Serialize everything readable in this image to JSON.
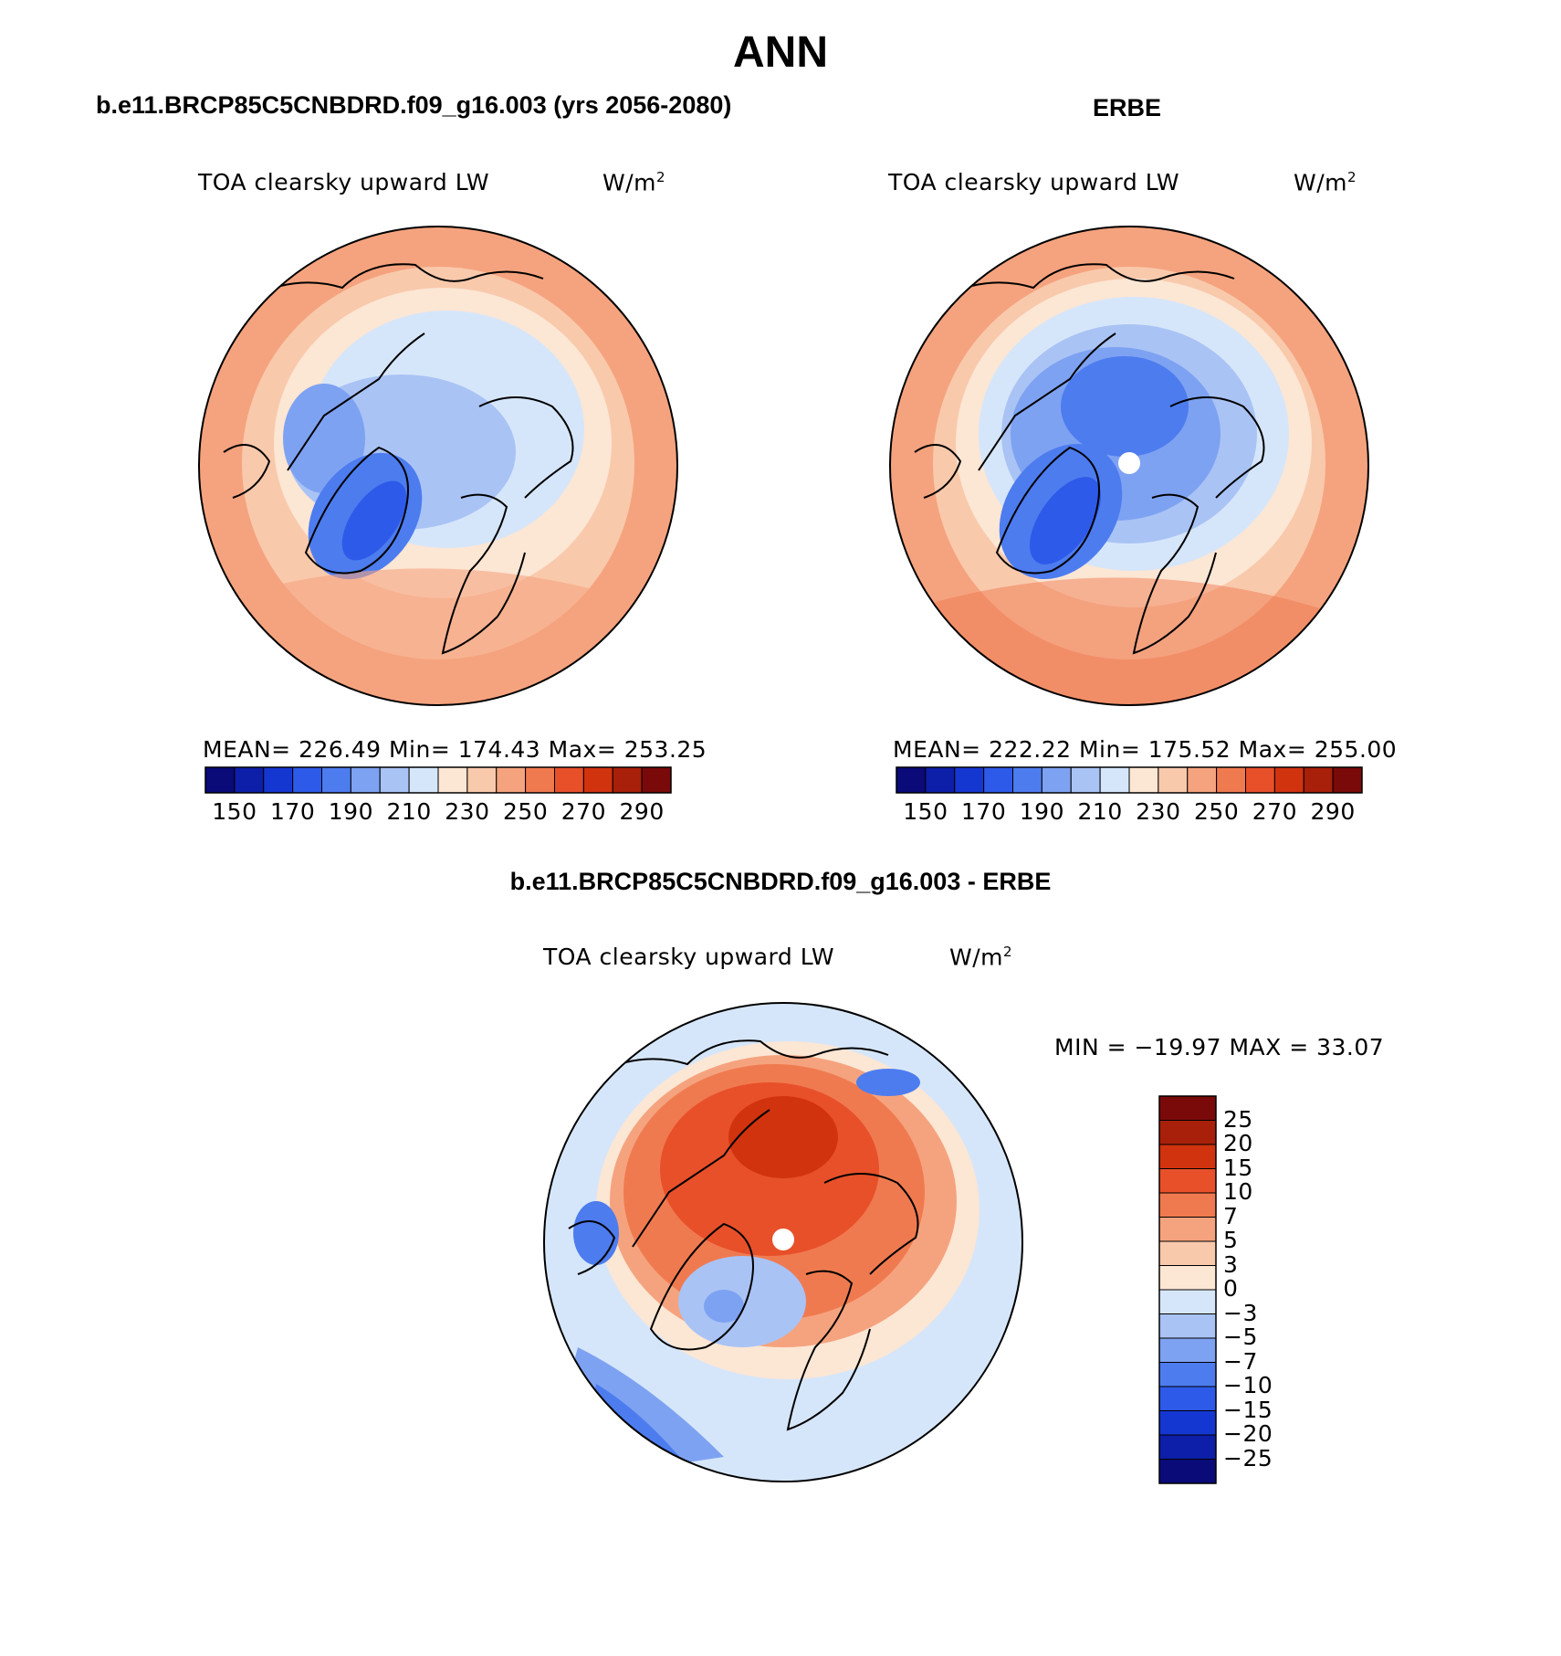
{
  "title": "ANN",
  "panels": [
    {
      "id": "model",
      "title": "b.e11.BRCP85C5CNBDRD.f09_g16.003 (yrs 2056-2080)",
      "variable": "TOA clearsky upward LW",
      "units_base": "W/m",
      "units_exp": "2",
      "stats": "MEAN= 226.49   Min= 174.43   Max= 253.25",
      "colorbar_labels": [
        "150",
        "170",
        "190",
        "210",
        "230",
        "250",
        "270",
        "290"
      ],
      "colorbar_colors": [
        "#0a0a78",
        "#0d1ea8",
        "#1537d1",
        "#2d5ae8",
        "#4d7cef",
        "#7ea2f2",
        "#a9c3f5",
        "#d6e6fa",
        "#fce6d4",
        "#f9c9ac",
        "#f5a37e",
        "#f07a50",
        "#e8502a",
        "#d1330f",
        "#a8200a",
        "#7a0a0a"
      ]
    },
    {
      "id": "obs",
      "title": "ERBE",
      "variable": "TOA clearsky upward LW",
      "units_base": "W/m",
      "units_exp": "2",
      "stats": "MEAN= 222.22   Min= 175.52   Max= 255.00",
      "colorbar_labels": [
        "150",
        "170",
        "190",
        "210",
        "230",
        "250",
        "270",
        "290"
      ],
      "colorbar_colors": [
        "#0a0a78",
        "#0d1ea8",
        "#1537d1",
        "#2d5ae8",
        "#4d7cef",
        "#7ea2f2",
        "#a9c3f5",
        "#d6e6fa",
        "#fce6d4",
        "#f9c9ac",
        "#f5a37e",
        "#f07a50",
        "#e8502a",
        "#d1330f",
        "#a8200a",
        "#7a0a0a"
      ]
    },
    {
      "id": "diff",
      "title": "b.e11.BRCP85C5CNBDRD.f09_g16.003 - ERBE",
      "variable": "TOA clearsky upward LW",
      "units_base": "W/m",
      "units_exp": "2",
      "stats": "MIN = −19.97 MAX =   33.07",
      "colorbar_labels": [
        "25",
        "20",
        "15",
        "10",
        "7",
        "5",
        "3",
        "0",
        "−3",
        "−5",
        "−7",
        "−10",
        "−15",
        "−20",
        "−25"
      ],
      "colorbar_colors": [
        "#7a0a0a",
        "#a8200a",
        "#d1330f",
        "#e8502a",
        "#f07a50",
        "#f5a37e",
        "#f9c9ac",
        "#fce6d4",
        "#d6e6fa",
        "#a9c3f5",
        "#7ea2f2",
        "#4d7cef",
        "#2d5ae8",
        "#1537d1",
        "#0d1ea8",
        "#0a0a78"
      ]
    }
  ]
}
